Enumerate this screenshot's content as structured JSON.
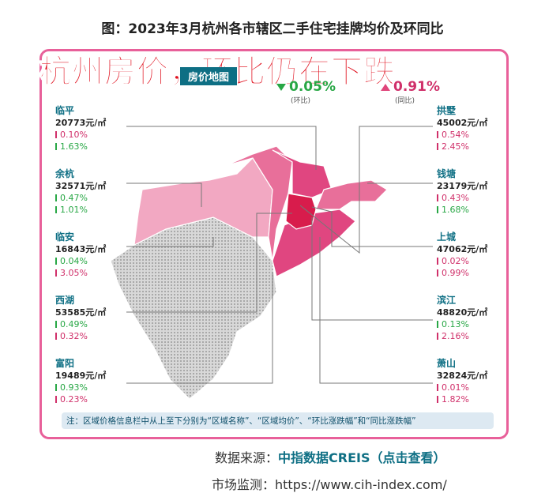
{
  "title": "图：2023年3月杭州各市辖区二手住宅挂牌均价及环同比",
  "banner": "杭州房价，环比仍在下跌",
  "map_header": "房价地图",
  "summary": [
    {
      "change": "0.05%",
      "direction": "down",
      "label": "(环比)"
    },
    {
      "change": "0.91%",
      "direction": "up",
      "label": "(同比)"
    }
  ],
  "unit": "元/㎡",
  "districts": [
    {
      "name": "临平",
      "price": 20773,
      "mom": "0.10%",
      "mom_dir": "up",
      "yoy": "1.63%",
      "yoy_dir": "down",
      "side": "left"
    },
    {
      "name": "余杭",
      "price": 32571,
      "mom": "0.47%",
      "mom_dir": "down",
      "yoy": "1.01%",
      "yoy_dir": "down",
      "side": "left"
    },
    {
      "name": "临安",
      "price": 16843,
      "mom": "0.04%",
      "mom_dir": "down",
      "yoy": "3.05%",
      "yoy_dir": "up",
      "side": "left"
    },
    {
      "name": "西湖",
      "price": 53585,
      "mom": "0.49%",
      "mom_dir": "down",
      "yoy": "0.32%",
      "yoy_dir": "up",
      "side": "left"
    },
    {
      "name": "富阳",
      "price": 19489,
      "mom": "0.93%",
      "mom_dir": "down",
      "yoy": "0.23%",
      "yoy_dir": "up",
      "side": "left"
    },
    {
      "name": "拱墅",
      "price": 45002,
      "mom": "0.54%",
      "mom_dir": "up",
      "yoy": "2.45%",
      "yoy_dir": "up",
      "side": "right"
    },
    {
      "name": "钱塘",
      "price": 23179,
      "mom": "0.43%",
      "mom_dir": "up",
      "yoy": "1.68%",
      "yoy_dir": "down",
      "side": "right"
    },
    {
      "name": "上城",
      "price": 47062,
      "mom": "0.02%",
      "mom_dir": "up",
      "yoy": "0.99%",
      "yoy_dir": "up",
      "side": "right"
    },
    {
      "name": "滨江",
      "price": 48820,
      "mom": "0.13%",
      "mom_dir": "down",
      "yoy": "2.16%",
      "yoy_dir": "up",
      "side": "right"
    },
    {
      "name": "萧山",
      "price": 32824,
      "mom": "0.01%",
      "mom_dir": "up",
      "yoy": "1.82%",
      "yoy_dir": "up",
      "side": "right"
    }
  ],
  "note": "注：区域价格信息栏中从上至下分别为“区域名称”、“区域均价”、“环比涨跌幅”和“同比涨跌幅”",
  "source_label": "数据来源：",
  "source_name": "中指数据CREIS（点击查看）",
  "monitor": "市场监测：https://www.cih-index.com/"
}
